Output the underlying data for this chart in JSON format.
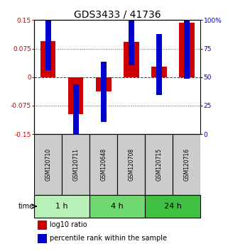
{
  "title": "GDS3433 / 41736",
  "samples": [
    "GSM120710",
    "GSM120711",
    "GSM120648",
    "GSM120708",
    "GSM120715",
    "GSM120716"
  ],
  "log10_ratio": [
    0.095,
    -0.097,
    -0.038,
    0.092,
    0.028,
    0.143
  ],
  "percentile_rank": [
    83,
    17,
    37,
    87,
    61,
    75
  ],
  "groups": [
    {
      "label": "1 h",
      "indices": [
        0,
        1
      ],
      "color": "#b8f0b8"
    },
    {
      "label": "4 h",
      "indices": [
        2,
        3
      ],
      "color": "#70d870"
    },
    {
      "label": "24 h",
      "indices": [
        4,
        5
      ],
      "color": "#40c040"
    }
  ],
  "ylim_left": [
    -0.15,
    0.15
  ],
  "yticks_left": [
    -0.15,
    -0.075,
    0,
    0.075,
    0.15
  ],
  "ytick_labels_left": [
    "-0.15",
    "-0.075",
    "0",
    "0.075",
    "0.15"
  ],
  "ylim_right": [
    0,
    100
  ],
  "yticks_right": [
    0,
    25,
    50,
    75,
    100
  ],
  "ytick_labels_right": [
    "0",
    "25",
    "50",
    "75",
    "100%"
  ],
  "bar_color_red": "#cc0000",
  "bar_color_blue": "#0000cc",
  "bar_width": 0.55,
  "blue_marker_size": 0.08,
  "title_fontsize": 10,
  "tick_fontsize": 6.5,
  "sample_fontsize": 5.5,
  "group_fontsize": 8,
  "legend_fontsize": 7,
  "time_label": "time"
}
